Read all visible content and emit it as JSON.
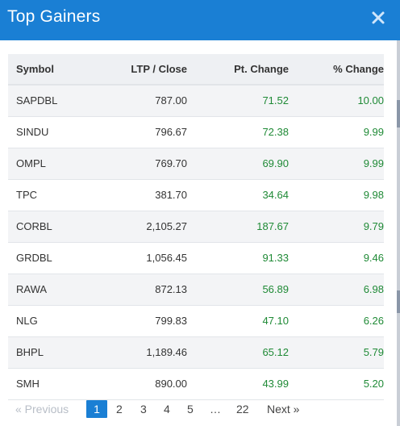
{
  "header": {
    "title": "Top Gainers",
    "close_glyph": "✕"
  },
  "table": {
    "columns": [
      "Symbol",
      "LTP / Close",
      "Pt. Change",
      "% Change"
    ],
    "rows": [
      {
        "symbol": "SAPDBL",
        "ltp": "787.00",
        "pt_change": "71.52",
        "pct_change": "10.00"
      },
      {
        "symbol": "SINDU",
        "ltp": "796.67",
        "pt_change": "72.38",
        "pct_change": "9.99"
      },
      {
        "symbol": "OMPL",
        "ltp": "769.70",
        "pt_change": "69.90",
        "pct_change": "9.99"
      },
      {
        "symbol": "TPC",
        "ltp": "381.70",
        "pt_change": "34.64",
        "pct_change": "9.98"
      },
      {
        "symbol": "CORBL",
        "ltp": "2,105.27",
        "pt_change": "187.67",
        "pct_change": "9.79"
      },
      {
        "symbol": "GRDBL",
        "ltp": "1,056.45",
        "pt_change": "91.33",
        "pct_change": "9.46"
      },
      {
        "symbol": "RAWA",
        "ltp": "872.13",
        "pt_change": "56.89",
        "pct_change": "6.98"
      },
      {
        "symbol": "NLG",
        "ltp": "799.83",
        "pt_change": "47.10",
        "pct_change": "6.26"
      },
      {
        "symbol": "BHPL",
        "ltp": "1,189.46",
        "pt_change": "65.12",
        "pct_change": "5.79"
      },
      {
        "symbol": "SMH",
        "ltp": "890.00",
        "pt_change": "43.99",
        "pct_change": "5.20"
      }
    ]
  },
  "pagination": {
    "prev_label": "« Previous",
    "pages": [
      "1",
      "2",
      "3",
      "4",
      "5"
    ],
    "ellipsis": "…",
    "last_page": "22",
    "next_label": "Next »",
    "active_page": "1"
  },
  "colors": {
    "header_bg": "#1a7fd4",
    "positive": "#1f8a36",
    "active_page_bg": "#1a7fd4"
  },
  "icons": {
    "close": "close-icon"
  }
}
